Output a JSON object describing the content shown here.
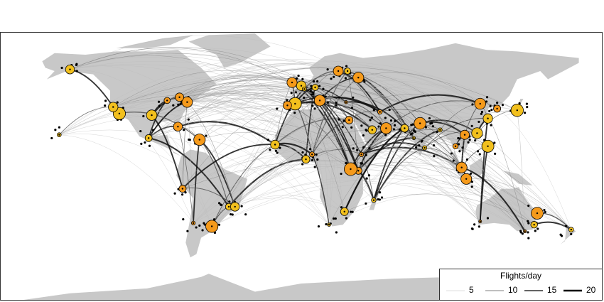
{
  "legend": {
    "title": "Flights/day",
    "items": [
      5,
      10,
      15,
      20
    ]
  }
}
